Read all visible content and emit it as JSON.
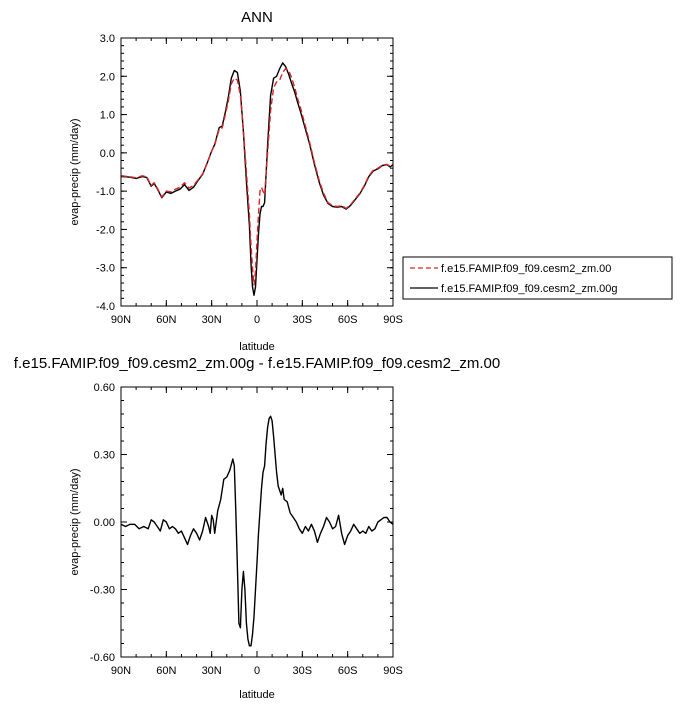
{
  "chart_data": [
    {
      "type": "line",
      "title": "ANN",
      "xlabel": "latitude",
      "ylabel": "evap-precip (mm/day)",
      "xlim": [
        90,
        -90
      ],
      "ylim": [
        -4.0,
        3.0
      ],
      "xticks": [
        90,
        60,
        30,
        0,
        -30,
        -60,
        -90
      ],
      "xtick_labels": [
        "90N",
        "60N",
        "30N",
        "0",
        "30S",
        "60S",
        "90S"
      ],
      "yticks": [
        3.0,
        2.0,
        1.0,
        0.0,
        -1.0,
        -2.0,
        -3.0,
        -4.0
      ],
      "ytick_labels": [
        "3.0",
        "2.0",
        "1.0",
        "0.0",
        "-1.0",
        "-2.0",
        "-3.0",
        "-4.0"
      ],
      "grid": false,
      "legend_position": "outside-right",
      "series": [
        {
          "name": "f.e15.FAMIP.f09_f09.cesm2_zm.00",
          "color": "#d62728",
          "dash": "dashed",
          "x": [
            90,
            85,
            80,
            76,
            73,
            70,
            68,
            66,
            63,
            60,
            57,
            54,
            51,
            48,
            45,
            42,
            39,
            36,
            33,
            30,
            28,
            25,
            23,
            21,
            19,
            17,
            15,
            13,
            11,
            9,
            7,
            5,
            4,
            3,
            2,
            1,
            0,
            -1,
            -2,
            -3,
            -4,
            -5,
            -7,
            -9,
            -11,
            -13,
            -15,
            -17,
            -19,
            -21,
            -23,
            -25,
            -27,
            -29,
            -32,
            -35,
            -38,
            -41,
            -44,
            -47,
            -50,
            -53,
            -56,
            -59,
            -62,
            -65,
            -68,
            -71,
            -74,
            -77,
            -80,
            -83,
            -86,
            -88,
            -90
          ],
          "values": [
            -0.6,
            -0.62,
            -0.65,
            -0.6,
            -0.62,
            -0.85,
            -0.78,
            -0.92,
            -1.15,
            -1.0,
            -1.02,
            -0.95,
            -0.9,
            -0.78,
            -0.92,
            -0.85,
            -0.7,
            -0.55,
            -0.28,
            0.05,
            0.2,
            0.62,
            0.65,
            1.0,
            1.35,
            1.8,
            1.95,
            1.9,
            1.5,
            0.6,
            -0.5,
            -1.6,
            -2.4,
            -3.0,
            -3.45,
            -3.1,
            -2.3,
            -1.6,
            -1.0,
            -0.9,
            -1.0,
            -1.1,
            0.0,
            1.1,
            1.7,
            1.85,
            1.9,
            2.1,
            2.2,
            2.15,
            1.95,
            1.7,
            1.4,
            1.15,
            0.7,
            0.25,
            -0.25,
            -0.7,
            -1.05,
            -1.3,
            -1.38,
            -1.4,
            -1.38,
            -1.45,
            -1.35,
            -1.2,
            -1.05,
            -0.85,
            -0.6,
            -0.45,
            -0.4,
            -0.32,
            -0.3,
            -0.35,
            -0.3
          ]
        },
        {
          "name": "f.e15.FAMIP.f09_f09.cesm2_zm.00g",
          "color": "#000000",
          "dash": "solid",
          "x": [
            90,
            85,
            80,
            76,
            73,
            70,
            68,
            66,
            63,
            60,
            57,
            54,
            51,
            48,
            45,
            42,
            39,
            36,
            33,
            30,
            28,
            25,
            23,
            21,
            19,
            17,
            15,
            13,
            11,
            9,
            7,
            5,
            4,
            3,
            2,
            1,
            0,
            -1,
            -2,
            -3,
            -4,
            -5,
            -7,
            -9,
            -11,
            -13,
            -15,
            -17,
            -19,
            -21,
            -23,
            -25,
            -27,
            -29,
            -32,
            -35,
            -38,
            -41,
            -44,
            -47,
            -50,
            -53,
            -56,
            -59,
            -62,
            -65,
            -68,
            -71,
            -74,
            -77,
            -80,
            -83,
            -86,
            -88,
            -90
          ],
          "values": [
            -0.62,
            -0.63,
            -0.67,
            -0.62,
            -0.64,
            -0.87,
            -0.8,
            -0.94,
            -1.17,
            -1.02,
            -1.06,
            -1.0,
            -0.95,
            -0.83,
            -0.98,
            -0.9,
            -0.72,
            -0.56,
            -0.27,
            0.05,
            0.22,
            0.66,
            0.7,
            1.06,
            1.45,
            1.95,
            2.15,
            2.1,
            1.6,
            0.55,
            -0.75,
            -1.9,
            -2.9,
            -3.5,
            -3.72,
            -3.5,
            -2.8,
            -2.1,
            -1.6,
            -1.4,
            -1.4,
            -1.3,
            0.2,
            1.5,
            1.95,
            2.0,
            2.2,
            2.35,
            2.25,
            2.05,
            1.8,
            1.58,
            1.3,
            1.05,
            0.62,
            0.2,
            -0.3,
            -0.75,
            -1.1,
            -1.32,
            -1.4,
            -1.42,
            -1.4,
            -1.47,
            -1.37,
            -1.22,
            -1.07,
            -0.87,
            -0.62,
            -0.47,
            -0.42,
            -0.33,
            -0.31,
            -0.37,
            -0.31
          ]
        }
      ]
    },
    {
      "type": "line",
      "title": "f.e15.FAMIP.f09_f09.cesm2_zm.00g - f.e15.FAMIP.f09_f09.cesm2_zm.00",
      "xlabel": "latitude",
      "ylabel": "evap-precip (mm/day)",
      "xlim": [
        90,
        -90
      ],
      "ylim": [
        -0.6,
        0.6
      ],
      "xticks": [
        90,
        60,
        30,
        0,
        -30,
        -60,
        -90
      ],
      "xtick_labels": [
        "90N",
        "60N",
        "30N",
        "0",
        "30S",
        "60S",
        "90S"
      ],
      "yticks": [
        0.6,
        0.3,
        0.0,
        -0.3,
        -0.6
      ],
      "ytick_labels": [
        "0.60",
        "0.30",
        "0.00",
        "-0.30",
        "-0.60"
      ],
      "grid": false,
      "series": [
        {
          "color": "#000000",
          "dash": "solid",
          "x": [
            90,
            87,
            84,
            81,
            78,
            75,
            72,
            70,
            68,
            66,
            64,
            62,
            60,
            58,
            56,
            54,
            52,
            50,
            48,
            46,
            44,
            42,
            40,
            38,
            36,
            34,
            32,
            31,
            30,
            29,
            28,
            26,
            24,
            22,
            20,
            18,
            16,
            15,
            14,
            13,
            12,
            11,
            10,
            9,
            8,
            7,
            6,
            5,
            4,
            3,
            2,
            1,
            0,
            -1,
            -2,
            -3,
            -4,
            -5,
            -6,
            -7,
            -8,
            -9,
            -10,
            -11,
            -12,
            -13,
            -14,
            -15,
            -16,
            -17,
            -18,
            -20,
            -22,
            -24,
            -26,
            -28,
            -30,
            -32,
            -34,
            -36,
            -38,
            -40,
            -42,
            -44,
            -46,
            -48,
            -50,
            -52,
            -54,
            -56,
            -58,
            -60,
            -62,
            -64,
            -66,
            -68,
            -70,
            -72,
            -74,
            -76,
            -78,
            -80,
            -82,
            -84,
            -86,
            -88,
            -90
          ],
          "values": [
            -0.01,
            -0.02,
            -0.01,
            -0.01,
            -0.03,
            -0.02,
            -0.03,
            0.01,
            0.0,
            -0.02,
            -0.04,
            0.01,
            0.0,
            -0.03,
            -0.02,
            -0.03,
            -0.05,
            -0.04,
            -0.07,
            -0.1,
            -0.06,
            -0.03,
            -0.05,
            -0.08,
            -0.04,
            0.02,
            -0.02,
            -0.05,
            0.03,
            0.01,
            -0.05,
            0.05,
            0.1,
            0.19,
            0.2,
            0.23,
            0.28,
            0.25,
            0.05,
            -0.2,
            -0.45,
            -0.47,
            -0.3,
            -0.22,
            -0.3,
            -0.45,
            -0.52,
            -0.55,
            -0.55,
            -0.5,
            -0.42,
            -0.3,
            -0.18,
            -0.05,
            0.05,
            0.15,
            0.22,
            0.25,
            0.35,
            0.42,
            0.46,
            0.47,
            0.45,
            0.38,
            0.3,
            0.22,
            0.16,
            0.14,
            0.12,
            0.15,
            0.1,
            0.09,
            0.04,
            0.02,
            0.0,
            -0.03,
            -0.05,
            -0.02,
            -0.04,
            -0.01,
            -0.04,
            -0.09,
            -0.05,
            -0.02,
            0.02,
            0.0,
            -0.03,
            -0.02,
            0.03,
            -0.05,
            -0.1,
            -0.06,
            -0.04,
            -0.01,
            -0.03,
            -0.05,
            -0.04,
            -0.05,
            -0.02,
            -0.04,
            -0.03,
            0.0,
            0.01,
            0.02,
            0.02,
            0.0,
            -0.01
          ]
        }
      ]
    }
  ]
}
